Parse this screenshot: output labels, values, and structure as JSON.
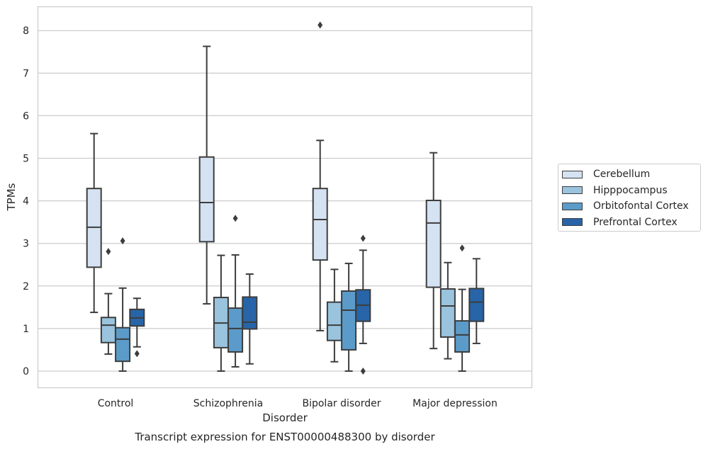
{
  "chart_data": {
    "type": "box",
    "xlabel": "Disorder",
    "ylabel": "TPMs",
    "caption": "Transcript expression for ENST00000488300 by disorder",
    "ylim": [
      -0.4,
      8.55
    ],
    "yticks": [
      0,
      1,
      2,
      3,
      4,
      5,
      6,
      7,
      8
    ],
    "grid": "horizontal",
    "legend_position": "right",
    "categories": [
      "Control",
      "Schizophrenia",
      "Bipolar disorder",
      "Major depression"
    ],
    "series": [
      {
        "name": "Cerebellum",
        "color": "#d4e2f2",
        "boxes": [
          {
            "min": 1.38,
            "q1": 2.44,
            "median": 3.38,
            "q3": 4.29,
            "max": 5.58,
            "outliers": []
          },
          {
            "min": 1.58,
            "q1": 3.04,
            "median": 3.96,
            "q3": 5.03,
            "max": 7.63,
            "outliers": []
          },
          {
            "min": 0.95,
            "q1": 2.61,
            "median": 3.56,
            "q3": 4.29,
            "max": 5.42,
            "outliers": [
              8.13
            ]
          },
          {
            "min": 0.53,
            "q1": 1.97,
            "median": 3.48,
            "q3": 4.01,
            "max": 5.13,
            "outliers": []
          }
        ]
      },
      {
        "name": "Hipppocampus",
        "color": "#9ac3de",
        "boxes": [
          {
            "min": 0.4,
            "q1": 0.67,
            "median": 1.08,
            "q3": 1.26,
            "max": 1.82,
            "outliers": [
              2.81
            ]
          },
          {
            "min": 0.0,
            "q1": 0.55,
            "median": 1.13,
            "q3": 1.73,
            "max": 2.72,
            "outliers": []
          },
          {
            "min": 0.22,
            "q1": 0.72,
            "median": 1.08,
            "q3": 1.62,
            "max": 2.39,
            "outliers": []
          },
          {
            "min": 0.29,
            "q1": 0.8,
            "median": 1.53,
            "q3": 1.93,
            "max": 2.55,
            "outliers": []
          }
        ]
      },
      {
        "name": "Orbitofontal Cortex",
        "color": "#5b9bc9",
        "boxes": [
          {
            "min": 0.0,
            "q1": 0.23,
            "median": 0.75,
            "q3": 1.02,
            "max": 1.95,
            "outliers": [
              3.06
            ]
          },
          {
            "min": 0.1,
            "q1": 0.45,
            "median": 1.0,
            "q3": 1.48,
            "max": 2.73,
            "outliers": [
              3.59
            ]
          },
          {
            "min": 0.0,
            "q1": 0.5,
            "median": 1.43,
            "q3": 1.88,
            "max": 2.53,
            "outliers": []
          },
          {
            "min": 0.0,
            "q1": 0.45,
            "median": 0.85,
            "q3": 1.18,
            "max": 1.92,
            "outliers": [
              2.89
            ]
          }
        ]
      },
      {
        "name": "Prefrontal Cortex",
        "color": "#2765a8",
        "boxes": [
          {
            "min": 0.57,
            "q1": 1.06,
            "median": 1.25,
            "q3": 1.45,
            "max": 1.71,
            "outliers": [
              0.41
            ]
          },
          {
            "min": 0.17,
            "q1": 0.99,
            "median": 1.15,
            "q3": 1.74,
            "max": 2.28,
            "outliers": []
          },
          {
            "min": 0.65,
            "q1": 1.17,
            "median": 1.55,
            "q3": 1.91,
            "max": 2.84,
            "outliers": [
              3.12,
              0.0
            ]
          },
          {
            "min": 0.65,
            "q1": 1.17,
            "median": 1.62,
            "q3": 1.94,
            "max": 2.64,
            "outliers": []
          }
        ]
      }
    ]
  }
}
